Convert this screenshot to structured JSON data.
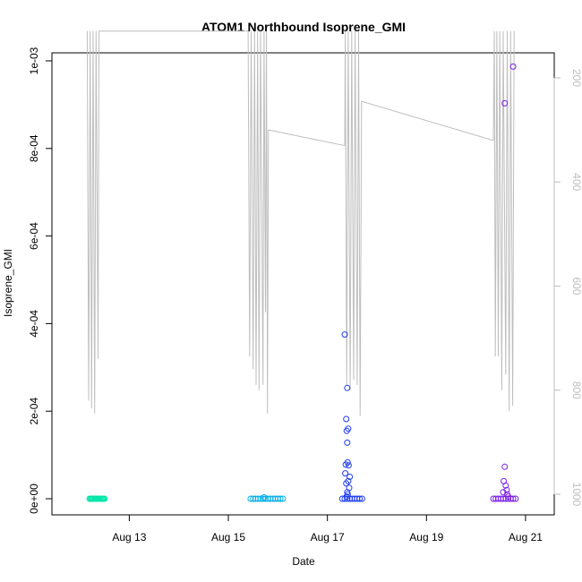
{
  "chart_data": {
    "type": "scatter",
    "title": "ATOM1 Northbound Isoprene_GMI",
    "xlabel": "Date",
    "ylabel": "Isoprene_GMI",
    "x_ticks": [
      "Aug 13",
      "Aug 15",
      "Aug 17",
      "Aug 19",
      "Aug 21"
    ],
    "y_ticks": [
      "0e+00",
      "2e-04",
      "4e-04",
      "6e-04",
      "8e-04",
      "1e-03"
    ],
    "y_right_ticks": [
      "200",
      "400",
      "600",
      "800",
      "1000"
    ],
    "ylim": [
      0,
      0.001
    ],
    "y_right_range": [
      1000,
      200
    ],
    "y_right_reversed": true,
    "grid": false,
    "colors": {
      "line": "#bebebe",
      "axis": "#000000",
      "right_axis": "#bdbdbd"
    },
    "series": [
      {
        "color": "#00e5a8",
        "points": [
          [
            12.2,
            0
          ],
          [
            12.22,
            0
          ],
          [
            12.24,
            0
          ],
          [
            12.26,
            0
          ],
          [
            12.28,
            0
          ],
          [
            12.3,
            0
          ],
          [
            12.32,
            0
          ],
          [
            12.34,
            0
          ],
          [
            12.36,
            0
          ],
          [
            12.38,
            0
          ],
          [
            12.4,
            0
          ],
          [
            12.42,
            0
          ],
          [
            12.44,
            0
          ],
          [
            12.46,
            0
          ],
          [
            12.48,
            0
          ],
          [
            12.5,
            0
          ]
        ]
      },
      {
        "color": "#00aee8",
        "points": [
          [
            15.45,
            0
          ],
          [
            15.5,
            0
          ],
          [
            15.55,
            0
          ],
          [
            15.6,
            0
          ],
          [
            15.65,
            0
          ],
          [
            15.7,
            0
          ],
          [
            15.75,
            0
          ],
          [
            15.8,
            0
          ],
          [
            15.85,
            0
          ],
          [
            15.9,
            0
          ],
          [
            15.95,
            0
          ],
          [
            16.0,
            0
          ],
          [
            16.05,
            0
          ],
          [
            16.1,
            0
          ],
          [
            15.72,
            3e-06
          ]
        ]
      },
      {
        "color": "#1f3cf0",
        "points": [
          [
            17.35,
            0.000375
          ],
          [
            17.4,
            0.000253
          ],
          [
            17.38,
            0.000182
          ],
          [
            17.42,
            0.00016
          ],
          [
            17.39,
            0.000155
          ],
          [
            17.4,
            0.000128
          ],
          [
            17.41,
            8.3e-05
          ],
          [
            17.37,
            7.8e-05
          ],
          [
            17.43,
            7.6e-05
          ],
          [
            17.36,
            5.8e-05
          ],
          [
            17.45,
            5e-05
          ],
          [
            17.42,
            4e-05
          ],
          [
            17.38,
            3.5e-05
          ],
          [
            17.44,
            2.5e-05
          ],
          [
            17.4,
            1.5e-05
          ],
          [
            17.41,
            1e-05
          ],
          [
            17.39,
            5e-06
          ],
          [
            17.3,
            0
          ],
          [
            17.35,
            0
          ],
          [
            17.4,
            0
          ],
          [
            17.45,
            0
          ],
          [
            17.5,
            0
          ],
          [
            17.55,
            0
          ],
          [
            17.6,
            0
          ],
          [
            17.65,
            0
          ],
          [
            17.7,
            0
          ]
        ]
      },
      {
        "color": "#7b1fe6",
        "points": [
          [
            20.75,
            0.000987
          ],
          [
            20.58,
            0.000903
          ],
          [
            20.58,
            7.3e-05
          ],
          [
            20.56,
            4e-05
          ],
          [
            20.6,
            3e-05
          ],
          [
            20.62,
            2e-05
          ],
          [
            20.55,
            1.5e-05
          ],
          [
            20.63,
            1e-05
          ],
          [
            20.65,
            5e-06
          ],
          [
            20.35,
            0
          ],
          [
            20.4,
            0
          ],
          [
            20.45,
            0
          ],
          [
            20.5,
            0
          ],
          [
            20.55,
            0
          ],
          [
            20.6,
            0
          ],
          [
            20.65,
            0
          ],
          [
            20.7,
            0
          ],
          [
            20.75,
            0
          ],
          [
            20.8,
            0
          ]
        ]
      }
    ],
    "line_series": {
      "color": "#bebebe",
      "axis": "right",
      "points": [
        [
          12.15,
          110
        ],
        [
          12.18,
          820
        ],
        [
          12.21,
          110
        ],
        [
          12.24,
          835
        ],
        [
          12.27,
          110
        ],
        [
          12.3,
          845
        ],
        [
          12.33,
          110
        ],
        [
          12.37,
          740
        ],
        [
          12.39,
          110
        ],
        [
          15.4,
          110
        ],
        [
          15.43,
          735
        ],
        [
          15.46,
          110
        ],
        [
          15.5,
          760
        ],
        [
          15.53,
          110
        ],
        [
          15.56,
          790
        ],
        [
          15.59,
          110
        ],
        [
          15.62,
          800
        ],
        [
          15.65,
          110
        ],
        [
          15.7,
          790
        ],
        [
          15.72,
          110
        ],
        [
          15.75,
          650
        ],
        [
          15.77,
          110
        ],
        [
          15.79,
          845
        ],
        [
          15.81,
          300
        ],
        [
          17.35,
          330
        ],
        [
          17.36,
          110
        ],
        [
          17.39,
          790
        ],
        [
          17.42,
          110
        ],
        [
          17.46,
          800
        ],
        [
          17.49,
          110
        ],
        [
          17.53,
          780
        ],
        [
          17.56,
          110
        ],
        [
          17.6,
          790
        ],
        [
          17.63,
          110
        ],
        [
          17.66,
          850
        ],
        [
          17.69,
          245
        ],
        [
          20.35,
          320
        ],
        [
          20.37,
          110
        ],
        [
          20.39,
          735
        ],
        [
          20.42,
          110
        ],
        [
          20.45,
          735
        ],
        [
          20.48,
          110
        ],
        [
          20.52,
          800
        ],
        [
          20.55,
          110
        ],
        [
          20.6,
          770
        ],
        [
          20.63,
          110
        ],
        [
          20.67,
          840
        ],
        [
          20.7,
          110
        ],
        [
          20.74,
          830
        ],
        [
          20.77,
          110
        ]
      ]
    },
    "x_range": [
      11.8,
      21.2
    ]
  }
}
